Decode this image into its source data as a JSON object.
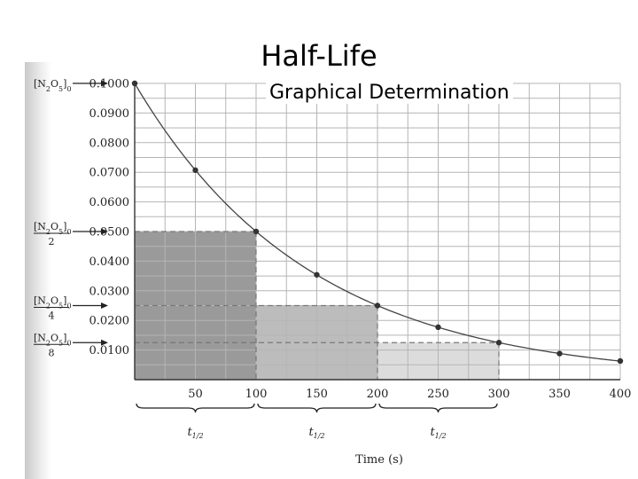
{
  "slide": {
    "title": "Half-Life",
    "subtitle": "Graphical Determination"
  },
  "chart_data": {
    "type": "line",
    "xlabel": "Time (s)",
    "ylabel": "",
    "xlim": [
      0,
      400
    ],
    "ylim": [
      0,
      0.1
    ],
    "x_ticks": [
      "50",
      "100",
      "150",
      "200",
      "250",
      "300",
      "350",
      "400"
    ],
    "y_ticks": [
      "0.0100",
      "0.0200",
      "0.0300",
      "0.0400",
      "0.0500",
      "0.0600",
      "0.0700",
      "0.0800",
      "0.0900",
      "0.1000"
    ],
    "grid": true,
    "series": [
      {
        "x": [
          0,
          50,
          100,
          150,
          200,
          250,
          300,
          350,
          400
        ],
        "y": [
          0.1,
          0.0707,
          0.05,
          0.0354,
          0.025,
          0.0177,
          0.0125,
          0.0088,
          0.0063
        ]
      }
    ],
    "half_life_regions": [
      {
        "x0": 0,
        "x1": 100,
        "height": 0.05,
        "fill": "#9a9a9a"
      },
      {
        "x0": 100,
        "x1": 200,
        "height": 0.025,
        "fill": "#bcbcbc"
      },
      {
        "x0": 200,
        "x1": 300,
        "height": 0.0125,
        "fill": "#dcdcdc"
      }
    ],
    "half_life_label": "t",
    "half_life_subscript": "1/2",
    "concentration_labels": [
      {
        "value": 0.1,
        "text": "[N",
        "sub1": "2",
        "mid": "O",
        "sub2": "5",
        "close": "]",
        "sub3": "0",
        "divisor": ""
      },
      {
        "value": 0.05,
        "text": "[N",
        "sub1": "2",
        "mid": "O",
        "sub2": "5",
        "close": "]",
        "sub3": "0",
        "divisor": "2"
      },
      {
        "value": 0.025,
        "text": "[N",
        "sub1": "2",
        "mid": "O",
        "sub2": "5",
        "close": "]",
        "sub3": "0",
        "divisor": "4"
      },
      {
        "value": 0.0125,
        "text": "[N",
        "sub1": "2",
        "mid": "O",
        "sub2": "5",
        "close": "]",
        "sub3": "0",
        "divisor": "8"
      }
    ],
    "colors": {
      "curve": "#444444",
      "grid": "#b5b5b5",
      "points": "#333333"
    }
  }
}
